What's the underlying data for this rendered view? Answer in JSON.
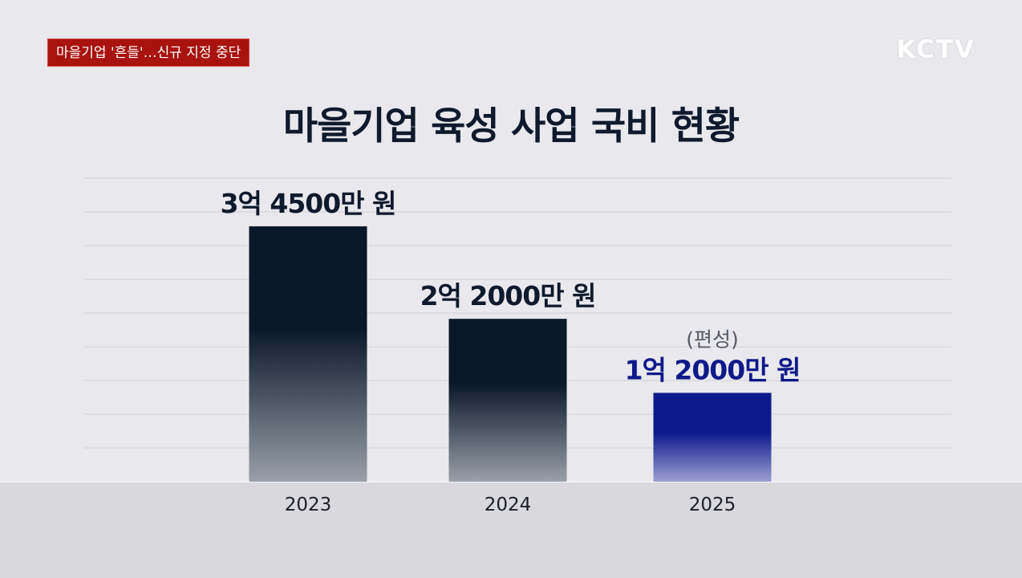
{
  "header": {
    "headline": "마을기업 '흔들'…신규 지정 중단",
    "logo": "KCTV"
  },
  "chart_data": {
    "type": "bar",
    "title": "마을기업 육성 사업 국비 현황",
    "categories": [
      "2023",
      "2024",
      "2025"
    ],
    "values": [
      34500,
      22000,
      12000
    ],
    "unit": "만 원",
    "data_labels": [
      "3억 4500만 원",
      "2억 2000만 원",
      "1억 2000만 원"
    ],
    "annotations": [
      {
        "category": "2025",
        "text": "(편성)"
      }
    ],
    "ylim": [
      0,
      41000
    ],
    "grid": true,
    "colors": {
      "bar_dark": "#0b1828",
      "bar_light": "#9aa0a9",
      "highlight_dark": "#0d1a8c",
      "highlight_light": "#9c9fd2",
      "highlight_label": "#10198a",
      "label": "#0f1a2c",
      "annotation": "#555b66"
    },
    "highlight_index": 2
  }
}
